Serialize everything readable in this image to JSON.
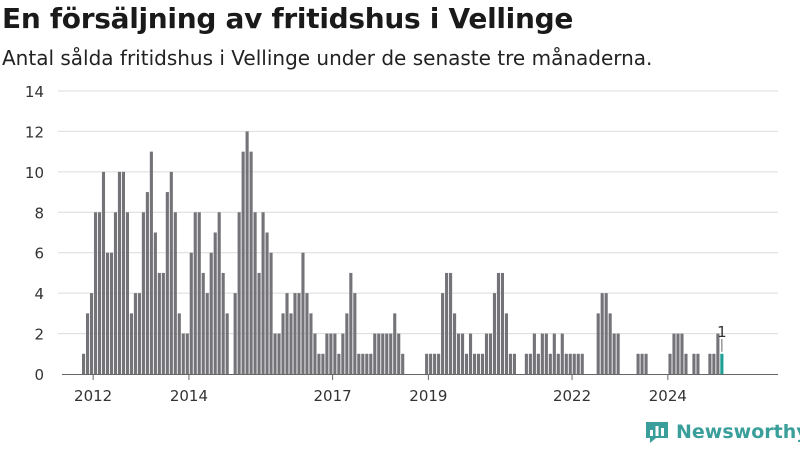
{
  "title": "En försäljning av fritidshus i Vellinge",
  "subtitle": "Antal sålda fritidshus i Vellinge under de senaste tre månaderna.",
  "brand": {
    "name": "Newsworthy",
    "color": "#3a9e9a"
  },
  "colors": {
    "bar": "#737378",
    "highlight": "#1f9e94",
    "grid": "#dcdcdc",
    "axis": "#666666",
    "text": "#333333"
  },
  "chart_data": {
    "type": "bar",
    "start_year": 2011.8,
    "years_per_bar": 0.0833,
    "ylim": [
      0,
      14
    ],
    "yticks": [
      0,
      2,
      4,
      6,
      8,
      10,
      12,
      14
    ],
    "xlim": [
      2011.35,
      2026.3
    ],
    "xticks": [
      {
        "value": 2012,
        "label": "2012"
      },
      {
        "value": 2014,
        "label": "2014"
      },
      {
        "value": 2017,
        "label": "2017"
      },
      {
        "value": 2019,
        "label": "2019"
      },
      {
        "value": 2022,
        "label": "2022"
      },
      {
        "value": 2024,
        "label": "2024"
      }
    ],
    "values": [
      1,
      3,
      4,
      8,
      8,
      10,
      6,
      6,
      8,
      10,
      10,
      8,
      3,
      4,
      4,
      8,
      9,
      11,
      7,
      5,
      5,
      9,
      10,
      8,
      3,
      2,
      2,
      6,
      8,
      8,
      5,
      4,
      6,
      7,
      8,
      5,
      3,
      0,
      4,
      8,
      11,
      12,
      11,
      8,
      5,
      8,
      7,
      6,
      2,
      2,
      3,
      4,
      3,
      4,
      4,
      6,
      4,
      3,
      2,
      1,
      1,
      2,
      2,
      2,
      1,
      2,
      3,
      5,
      4,
      1,
      1,
      1,
      1,
      2,
      2,
      2,
      2,
      2,
      3,
      2,
      1,
      0,
      0,
      0,
      0,
      0,
      1,
      1,
      1,
      1,
      4,
      5,
      5,
      3,
      2,
      2,
      1,
      2,
      1,
      1,
      1,
      2,
      2,
      4,
      5,
      5,
      3,
      1,
      1,
      0,
      0,
      1,
      1,
      2,
      1,
      2,
      2,
      1,
      2,
      1,
      2,
      1,
      1,
      1,
      1,
      1,
      0,
      0,
      0,
      3,
      4,
      4,
      3,
      2,
      2,
      0,
      0,
      0,
      0,
      1,
      1,
      1,
      0,
      0,
      0,
      0,
      0,
      1,
      2,
      2,
      2,
      1,
      0,
      1,
      1,
      0,
      0,
      1,
      1,
      2,
      1
    ],
    "last_label": "1"
  }
}
